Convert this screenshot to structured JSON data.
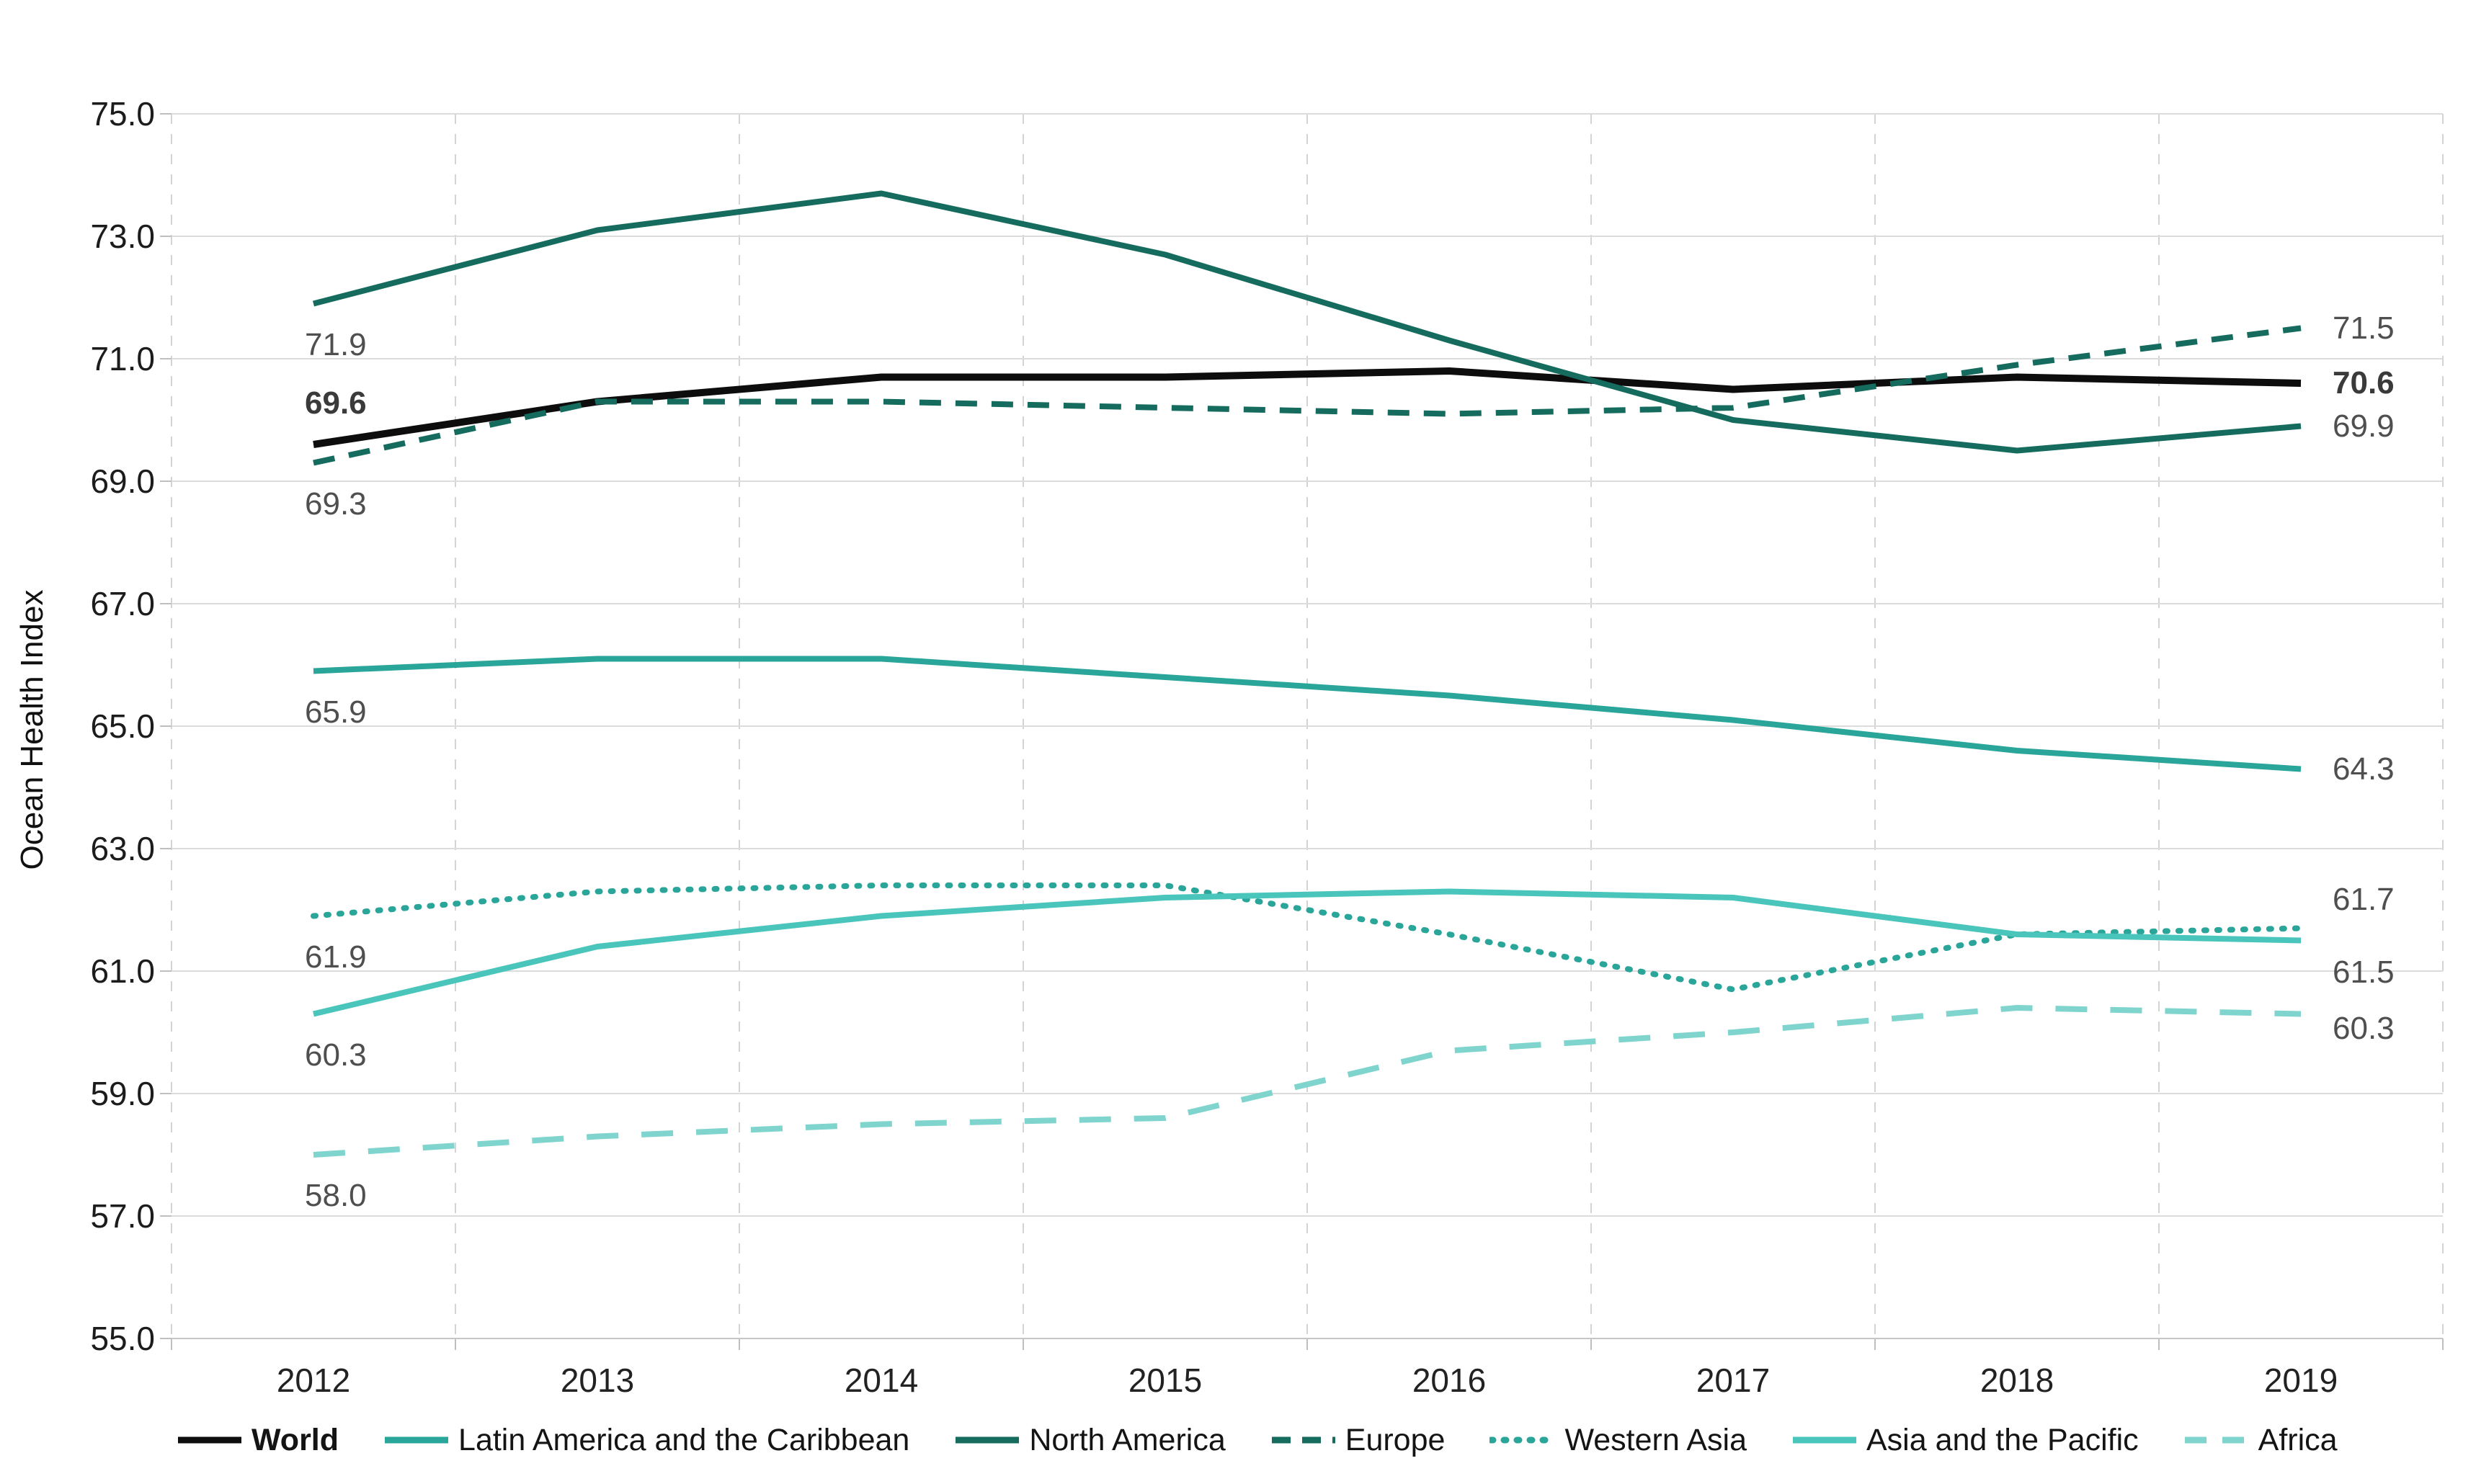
{
  "chart_data": {
    "type": "line",
    "title": "",
    "xlabel": "",
    "ylabel": "Ocean Health Index",
    "ylim": [
      55.0,
      75.0
    ],
    "y_tick_step": 2.0,
    "y_ticks": [
      "75.0",
      "73.0",
      "71.0",
      "69.0",
      "67.0",
      "65.0",
      "63.0",
      "61.0",
      "59.0",
      "57.0",
      "55.0"
    ],
    "categories": [
      "2012",
      "2013",
      "2014",
      "2015",
      "2016",
      "2017",
      "2018",
      "2019"
    ],
    "grid": {
      "horizontal": "solid",
      "vertical": "dashed",
      "vertical_placement": "between-categories"
    },
    "legend_position": "bottom",
    "series": [
      {
        "name": "World",
        "color": "#0d0d0d",
        "style": "solid",
        "bold": true,
        "values": [
          69.6,
          70.3,
          70.7,
          70.7,
          70.8,
          70.5,
          70.7,
          70.6
        ],
        "start_label": "69.6",
        "end_label": "70.6"
      },
      {
        "name": "Latin America and the Caribbean",
        "color": "#2aa599",
        "style": "solid",
        "bold": false,
        "values": [
          65.9,
          66.1,
          66.1,
          65.8,
          65.5,
          65.1,
          64.6,
          64.3
        ],
        "start_label": "65.9",
        "end_label": "64.3"
      },
      {
        "name": "North America",
        "color": "#156b5e",
        "style": "solid",
        "bold": false,
        "values": [
          71.9,
          73.1,
          73.7,
          72.7,
          71.3,
          70.0,
          69.5,
          69.9
        ],
        "start_label": "71.9",
        "end_label": "69.9"
      },
      {
        "name": "Europe",
        "color": "#156b5e",
        "style": "dashed",
        "bold": false,
        "values": [
          69.3,
          70.3,
          70.3,
          70.2,
          70.1,
          70.2,
          70.9,
          71.5
        ],
        "start_label": "69.3",
        "end_label": "71.5"
      },
      {
        "name": "Western Asia",
        "color": "#2aa599",
        "style": "dotted",
        "bold": false,
        "values": [
          61.9,
          62.3,
          62.4,
          62.4,
          61.6,
          60.7,
          61.6,
          61.7
        ],
        "start_label": "61.9",
        "end_label": "61.7"
      },
      {
        "name": "Asia and the Pacific",
        "color": "#49c5bb",
        "style": "solid",
        "bold": false,
        "values": [
          60.3,
          61.4,
          61.9,
          62.2,
          62.3,
          62.2,
          61.6,
          61.5
        ],
        "start_label": "60.3",
        "end_label": "61.5"
      },
      {
        "name": "Africa",
        "color": "#7fd5cd",
        "style": "longdash",
        "bold": false,
        "values": [
          58.0,
          58.3,
          58.5,
          58.6,
          59.7,
          60.0,
          60.4,
          60.3
        ],
        "start_label": "58.0",
        "end_label": "60.3"
      }
    ]
  }
}
